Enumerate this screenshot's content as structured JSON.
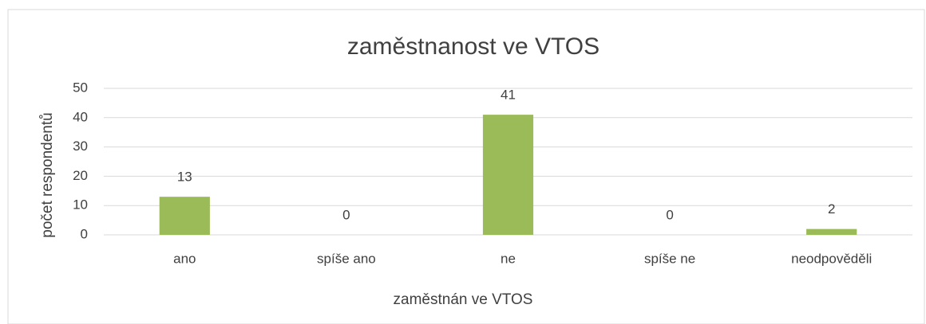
{
  "chart_data": {
    "type": "bar",
    "title": "zaměstnanost ve VTOS",
    "x_label": "zaměstnán ve VTOS",
    "y_label": "počet respondentů",
    "categories": [
      "ano",
      "spíše ano",
      "ne",
      "spíše ne",
      "neodpověděli"
    ],
    "values": [
      13,
      0,
      41,
      0,
      2
    ],
    "color": "#9bbb59",
    "ylim": [
      0,
      50
    ],
    "yticks": [
      0,
      10,
      20,
      30,
      40,
      50
    ],
    "grid": true
  }
}
